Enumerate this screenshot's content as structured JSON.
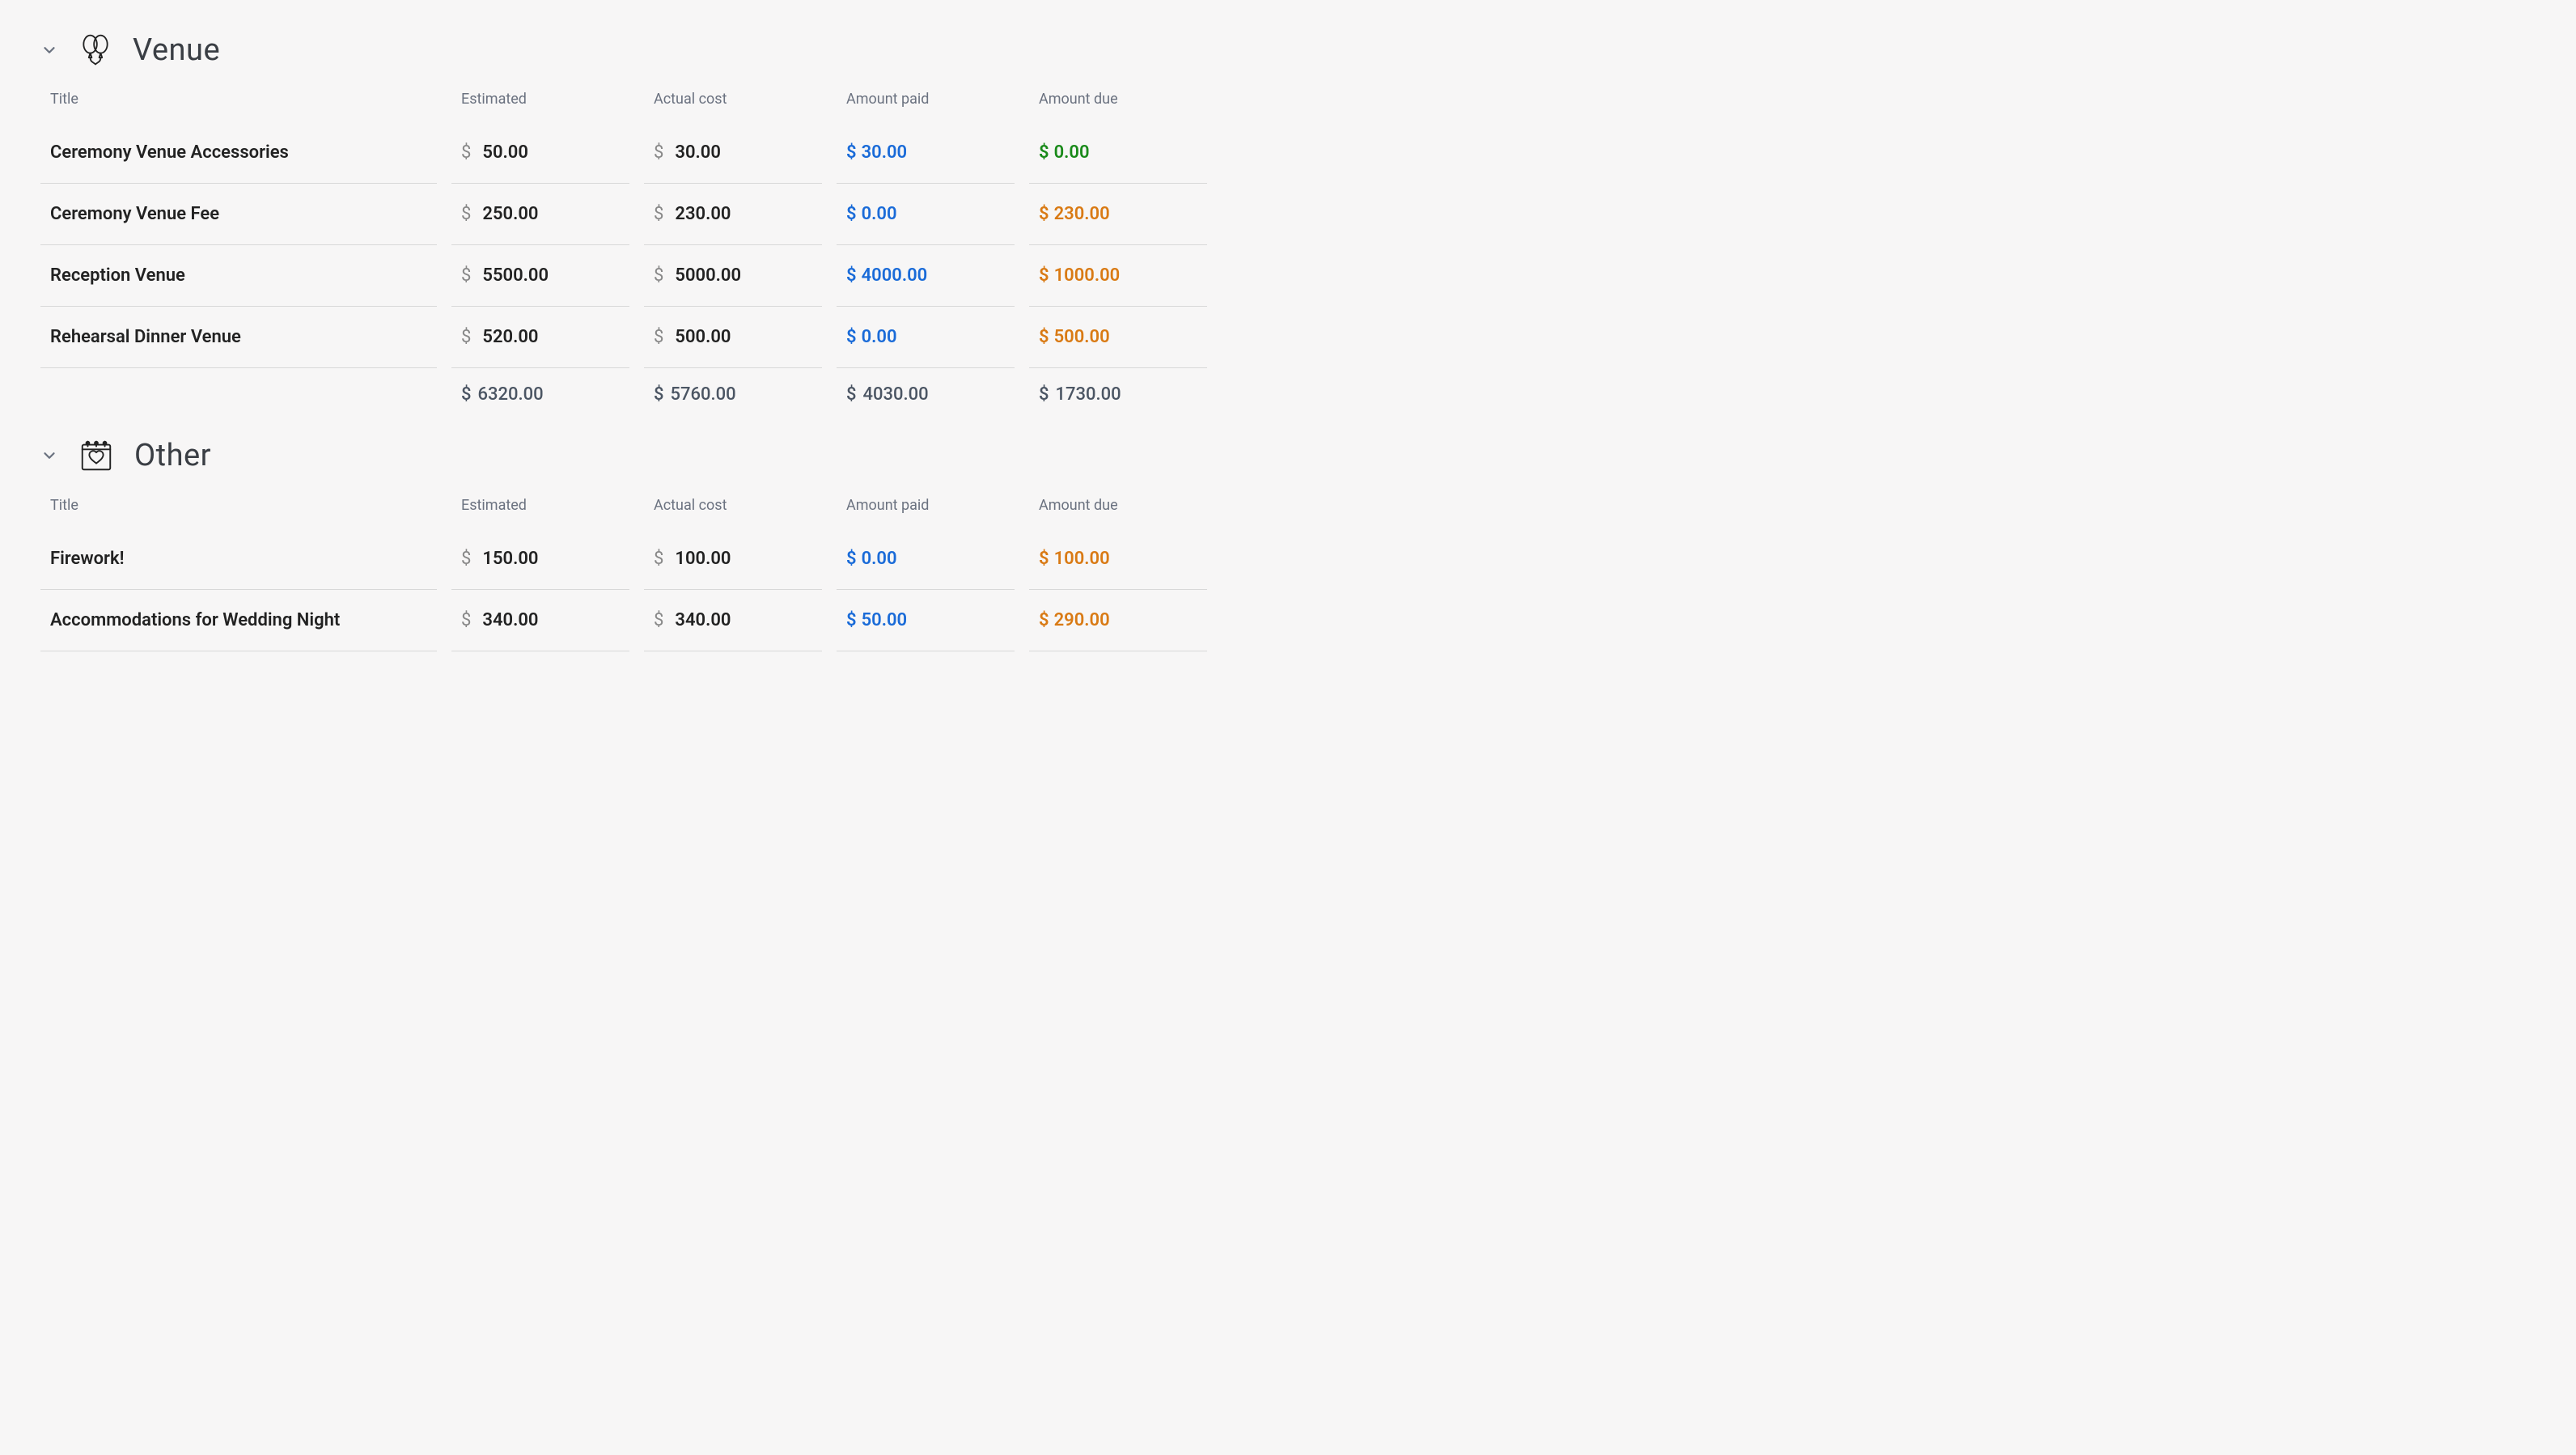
{
  "colors": {
    "paid": "#1a6bd8",
    "dueZero": "#1a8a1a",
    "duePositive": "#d97a14",
    "text": "#222222",
    "muted": "#6b7280",
    "border": "#d8d8d8",
    "background": "#f7f6f6"
  },
  "columns": {
    "title": "Title",
    "estimated": "Estimated",
    "actual": "Actual cost",
    "paid": "Amount paid",
    "due": "Amount due"
  },
  "sections": [
    {
      "id": "venue",
      "name": "Venue",
      "icon": "balloons",
      "rows": [
        {
          "title": "Ceremony Venue Accessories",
          "estimated": "50.00",
          "actual": "30.00",
          "paid": "30.00",
          "due": "0.00"
        },
        {
          "title": "Ceremony Venue Fee",
          "estimated": "250.00",
          "actual": "230.00",
          "paid": "0.00",
          "due": "230.00"
        },
        {
          "title": "Reception Venue",
          "estimated": "5500.00",
          "actual": "5000.00",
          "paid": "4000.00",
          "due": "1000.00"
        },
        {
          "title": "Rehearsal Dinner Venue",
          "estimated": "520.00",
          "actual": "500.00",
          "paid": "0.00",
          "due": "500.00"
        }
      ],
      "totals": {
        "estimated": "6320.00",
        "actual": "5760.00",
        "paid": "4030.00",
        "due": "1730.00"
      }
    },
    {
      "id": "other",
      "name": "Other",
      "icon": "calendar-heart",
      "rows": [
        {
          "title": "Firework!",
          "estimated": "150.00",
          "actual": "100.00",
          "paid": "0.00",
          "due": "100.00"
        },
        {
          "title": "Accommodations for Wedding Night",
          "estimated": "340.00",
          "actual": "340.00",
          "paid": "50.00",
          "due": "290.00"
        }
      ]
    }
  ]
}
